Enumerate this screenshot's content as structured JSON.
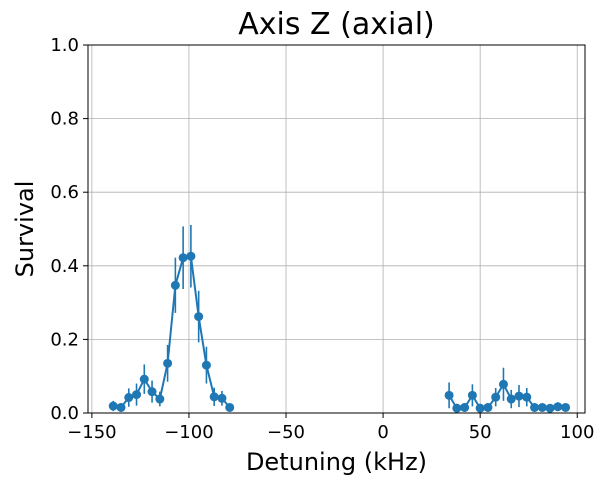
{
  "chart_data": {
    "type": "scatter",
    "title": "Axis Z (axial)",
    "xlabel": "Detuning (kHz)",
    "ylabel": "Survival",
    "xlim": [
      -152,
      104
    ],
    "ylim": [
      0.0,
      1.0
    ],
    "xticks": [
      -150,
      -100,
      -50,
      0,
      50,
      100
    ],
    "xtick_labels": [
      "−150",
      "−100",
      "−50",
      "0",
      "50",
      "100"
    ],
    "yticks": [
      0.0,
      0.2,
      0.4,
      0.6,
      0.8,
      1.0
    ],
    "ytick_labels": [
      "0.0",
      "0.2",
      "0.4",
      "0.6",
      "0.8",
      "1.0"
    ],
    "grid": true,
    "series_color": "#1f77b4",
    "series": [
      {
        "points": [
          {
            "x": -139,
            "y": 0.019,
            "err": 0.014
          },
          {
            "x": -135,
            "y": 0.015,
            "err": 0.012
          },
          {
            "x": -131,
            "y": 0.042,
            "err": 0.025
          },
          {
            "x": -127,
            "y": 0.05,
            "err": 0.03
          },
          {
            "x": -123,
            "y": 0.092,
            "err": 0.04
          },
          {
            "x": -119,
            "y": 0.058,
            "err": 0.03
          },
          {
            "x": -115,
            "y": 0.038,
            "err": 0.02
          },
          {
            "x": -111,
            "y": 0.135,
            "err": 0.05
          },
          {
            "x": -107,
            "y": 0.347,
            "err": 0.075
          },
          {
            "x": -103,
            "y": 0.422,
            "err": 0.085
          },
          {
            "x": -99,
            "y": 0.426,
            "err": 0.085
          },
          {
            "x": -95,
            "y": 0.262,
            "err": 0.07
          },
          {
            "x": -91,
            "y": 0.13,
            "err": 0.05
          },
          {
            "x": -87,
            "y": 0.044,
            "err": 0.025
          },
          {
            "x": -83,
            "y": 0.04,
            "err": 0.02
          },
          {
            "x": -79,
            "y": 0.015,
            "err": 0.01
          }
        ]
      },
      {
        "points": [
          {
            "x": 34,
            "y": 0.048,
            "err": 0.035
          },
          {
            "x": 38,
            "y": 0.013,
            "err": 0.012
          },
          {
            "x": 42,
            "y": 0.015,
            "err": 0.012
          },
          {
            "x": 46,
            "y": 0.048,
            "err": 0.03
          },
          {
            "x": 50,
            "y": 0.013,
            "err": 0.012
          },
          {
            "x": 54,
            "y": 0.015,
            "err": 0.012
          },
          {
            "x": 58,
            "y": 0.043,
            "err": 0.025
          },
          {
            "x": 62,
            "y": 0.078,
            "err": 0.045
          },
          {
            "x": 66,
            "y": 0.038,
            "err": 0.025
          },
          {
            "x": 70,
            "y": 0.046,
            "err": 0.03
          },
          {
            "x": 74,
            "y": 0.043,
            "err": 0.025
          },
          {
            "x": 78,
            "y": 0.015,
            "err": 0.012
          },
          {
            "x": 82,
            "y": 0.015,
            "err": 0.01
          },
          {
            "x": 86,
            "y": 0.013,
            "err": 0.01
          },
          {
            "x": 90,
            "y": 0.017,
            "err": 0.012
          },
          {
            "x": 94,
            "y": 0.015,
            "err": 0.01
          }
        ]
      }
    ]
  }
}
